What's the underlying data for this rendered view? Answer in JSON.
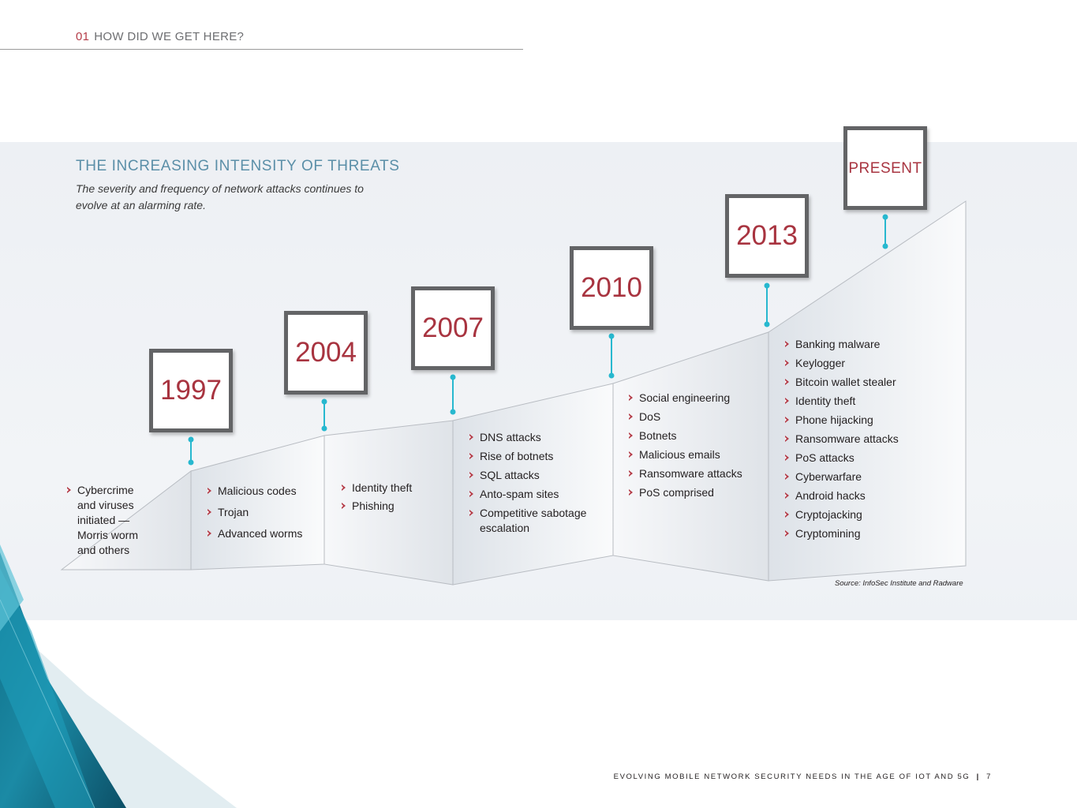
{
  "header": {
    "section_number": "01",
    "section_title": "HOW DID WE GET HERE?"
  },
  "title": "THE INCREASING INTENSITY OF THREATS",
  "subtitle": "The severity and frequency of network attacks continues to evolve at an alarming rate.",
  "timeline": [
    {
      "year": "1997",
      "items": [
        "Cybercrime and viruses initiated — Morris worm and others"
      ]
    },
    {
      "year": "2004",
      "items": [
        "Malicious codes",
        "Trojan",
        "Advanced worms"
      ]
    },
    {
      "year": "2007",
      "items": [
        "Identity theft",
        "Phishing"
      ]
    },
    {
      "year": "2010",
      "items": [
        "DNS attacks",
        "Rise of botnets",
        "SQL attacks",
        "Anto-spam sites",
        "Competitive sabotage escalation"
      ]
    },
    {
      "year": "2013",
      "items": [
        "Social engineering",
        "DoS",
        "Botnets",
        "Malicious emails",
        "Ransomware attacks",
        "PoS comprised"
      ]
    },
    {
      "year": "PRESENT",
      "items": [
        "Banking malware",
        "Keylogger",
        "Bitcoin wallet stealer",
        "Identity theft",
        "Phone hijacking",
        "Ransomware attacks",
        "PoS attacks",
        "Cyberwarfare",
        "Android hacks",
        "Cryptojacking",
        "Cryptomining"
      ]
    }
  ],
  "source": "Source: InfoSec Institute and Radware",
  "footer": {
    "text": "EVOLVING MOBILE NETWORK SECURITY NEEDS IN THE AGE OF IOT AND 5G",
    "separator": "|",
    "page": "7"
  },
  "colors": {
    "accent_red": "#a83440",
    "title_blue": "#5b8fa8",
    "connector_cyan": "#27b8cf",
    "box_border": "#636466"
  }
}
